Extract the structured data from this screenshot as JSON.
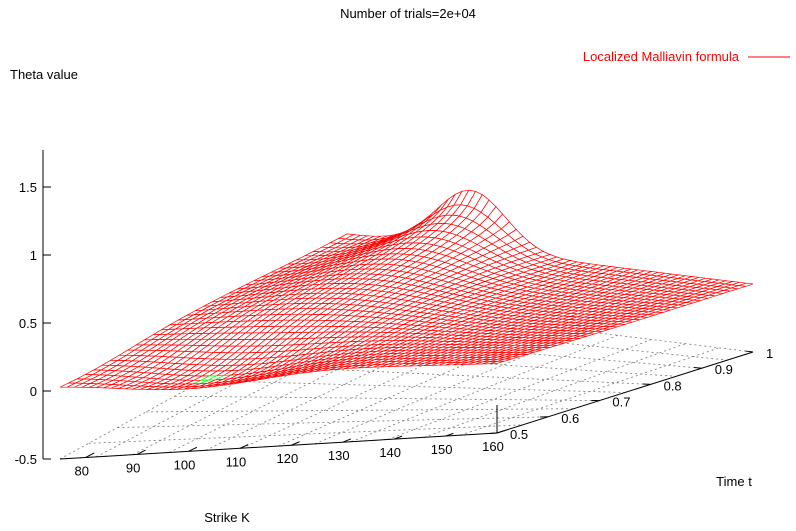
{
  "chart_data": {
    "type": "surface",
    "title": "Number of trials=2e+04",
    "zlabel": "Theta value",
    "xlabel": "Strike K",
    "ylabel": "Time t",
    "xlim": [
      75,
      160
    ],
    "ylim": [
      0.5,
      1.0
    ],
    "zlim": [
      -0.5,
      1.75
    ],
    "x_ticks": [
      "80",
      "90",
      "100",
      "110",
      "120",
      "130",
      "140",
      "150",
      "160"
    ],
    "y_ticks": [
      "0.5",
      "0.6",
      "0.7",
      "0.8",
      "0.9",
      "1"
    ],
    "z_ticks": [
      "-0.5",
      "0",
      "0.5",
      "1",
      "1.5"
    ],
    "grid": "base plane dotted",
    "legend": {
      "position": "top-right"
    },
    "series": [
      {
        "name": "Localized Malliavin formula",
        "color": "#ff0000",
        "underside_color": "#00ff00"
      }
    ],
    "surface_peak": {
      "strike": 100,
      "time": 1.0,
      "theta": 1.65
    },
    "surface_trough": {
      "strike": 100,
      "time": 0.55,
      "theta": -0.15
    }
  }
}
